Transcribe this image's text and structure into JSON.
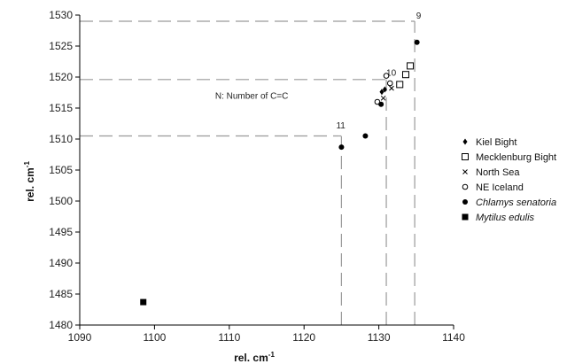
{
  "chart_data": {
    "type": "scatter",
    "xlabel": "rel. cm",
    "xlabel_sup": "-1",
    "ylabel": "rel. cm",
    "ylabel_sup": "-1",
    "xlim": [
      1090,
      1140
    ],
    "ylim": [
      1480,
      1530
    ],
    "xticks": [
      "1090",
      "1100",
      "1110",
      "1120",
      "1130",
      "1140"
    ],
    "yticks": [
      "1480",
      "1485",
      "1490",
      "1495",
      "1500",
      "1505",
      "1510",
      "1515",
      "1520",
      "1525",
      "1530"
    ],
    "grid": false,
    "legend_position": "right",
    "series": [
      {
        "name": "Kiel Bight",
        "marker": "diamond",
        "points": [
          [
            1130.4,
            1517.6
          ],
          [
            1130.8,
            1518.0
          ]
        ]
      },
      {
        "name": "Mecklenburg Bight",
        "marker": "square-open",
        "points": [
          [
            1132.8,
            1518.8
          ],
          [
            1133.6,
            1520.4
          ],
          [
            1134.2,
            1521.8
          ]
        ]
      },
      {
        "name": "North Sea",
        "marker": "x",
        "points": [
          [
            1130.6,
            1516.6
          ],
          [
            1131.7,
            1518.2
          ]
        ]
      },
      {
        "name": "NE Iceland",
        "marker": "circle-open",
        "points": [
          [
            1129.8,
            1516.0
          ],
          [
            1131.5,
            1519.0
          ],
          [
            1131.0,
            1520.2
          ]
        ]
      },
      {
        "name": "Chlamys senatoria",
        "marker": "circle",
        "italic": true,
        "points": [
          [
            1125.0,
            1508.7
          ],
          [
            1128.2,
            1510.5
          ],
          [
            1130.3,
            1515.6
          ],
          [
            1135.1,
            1525.6
          ]
        ]
      },
      {
        "name": "Mytilus edulis",
        "marker": "square",
        "italic": true,
        "points": [
          [
            1098.5,
            1483.7
          ]
        ]
      }
    ],
    "annotations": {
      "text": "N: Number of C=C",
      "text_at": [
        1113,
        1516.5
      ],
      "labels": [
        {
          "text": "9",
          "at": [
            1135.0,
            1529.4
          ]
        },
        {
          "text": "10",
          "at": [
            1131.0,
            1520.2
          ]
        },
        {
          "text": "11",
          "at": [
            1124.3,
            1511.7
          ]
        }
      ]
    },
    "reference_lines": [
      {
        "y": 1529.0,
        "x_end": 1134.8
      },
      {
        "y": 1519.6,
        "x_end": 1131.0
      },
      {
        "y": 1510.5,
        "x_end": 1125.0
      },
      {
        "x": 1125.0,
        "y_end": 1510.5
      },
      {
        "x": 1131.0,
        "y_end": 1519.6
      },
      {
        "x": 1134.8,
        "y_end": 1529.0
      }
    ]
  }
}
